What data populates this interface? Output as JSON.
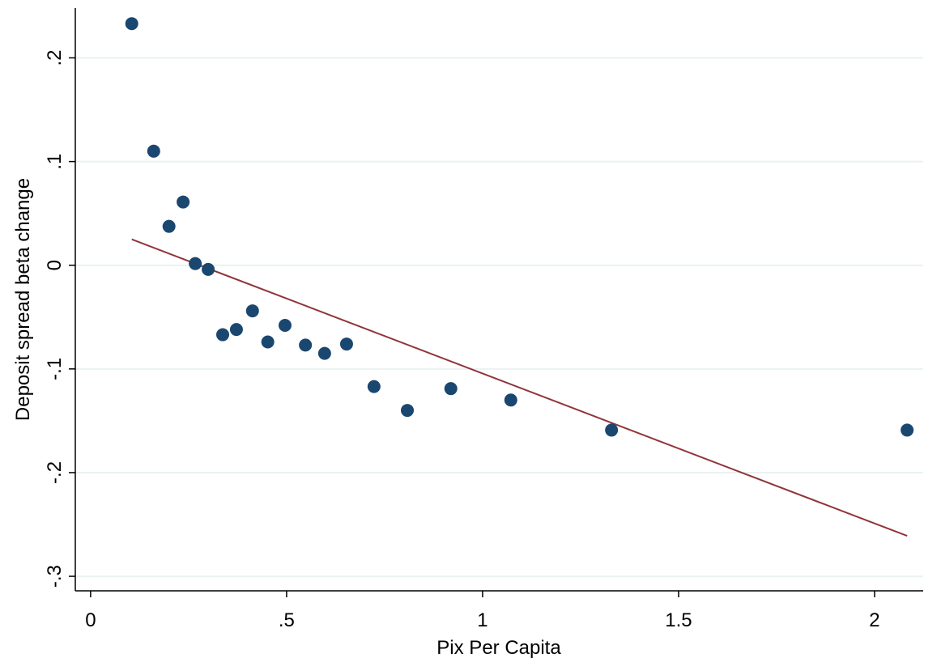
{
  "chart_data": {
    "type": "scatter",
    "x_label": "Pix Per Capita",
    "y_label": "Deposit spread beta change",
    "xlim": [
      -0.039,
      2.124
    ],
    "ylim": [
      -0.314,
      0.248
    ],
    "xticks": [
      0,
      {
        "value": 0.5,
        "label": ".5"
      },
      1,
      1.5,
      2
    ],
    "yticks": [
      {
        "value": -0.3,
        "label": "-.3"
      },
      {
        "value": -0.2,
        "label": "-.2"
      },
      {
        "value": -0.1,
        "label": "-.1"
      },
      0,
      {
        "value": 0.1,
        "label": ".1"
      },
      {
        "value": 0.2,
        "label": ".2"
      }
    ],
    "grid": true,
    "series": [
      {
        "color": "#1a476f",
        "x": [
          0.105,
          0.161,
          0.2,
          0.236,
          0.267,
          0.3,
          0.337,
          0.372,
          0.413,
          0.452,
          0.496,
          0.548,
          0.597,
          0.653,
          0.723,
          0.808,
          0.919,
          1.072,
          1.329,
          2.083
        ],
        "values": [
          0.233,
          0.11,
          0.0375,
          0.061,
          0.0016,
          -0.004,
          -0.067,
          -0.062,
          -0.044,
          -0.074,
          -0.058,
          -0.077,
          -0.085,
          -0.076,
          -0.117,
          -0.14,
          -0.119,
          -0.13,
          -0.159,
          -0.159
        ]
      }
    ],
    "fit_line": {
      "color": "#90353b",
      "x": [
        0.105,
        2.083
      ],
      "values": [
        0.025,
        -0.261
      ]
    }
  }
}
